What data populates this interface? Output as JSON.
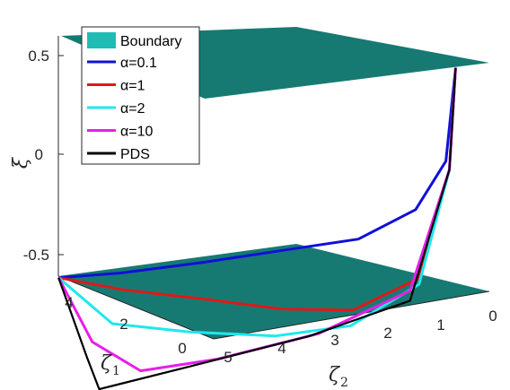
{
  "chart_data": {
    "type": "line",
    "title": "",
    "axes": {
      "x": {
        "label": "ζ",
        "subscript": "2",
        "ticks": [
          "5",
          "4",
          "3",
          "2",
          "1",
          "0"
        ]
      },
      "y": {
        "label": "ζ",
        "subscript": "1",
        "ticks": [
          "0",
          "2",
          "4"
        ]
      },
      "z": {
        "label": "ξ",
        "ticks": [
          "0.5",
          "0",
          "-0.5"
        ],
        "zlim": [
          -0.6,
          0.6
        ]
      }
    },
    "surfaces": [
      {
        "name": "Boundary",
        "z": 0.6,
        "color": "#177a72"
      },
      {
        "name": "Boundary",
        "z": -0.6,
        "color": "#177a72"
      }
    ],
    "series": [
      {
        "name": "α=0.1",
        "color": "#1010d8",
        "points_zeta2_zeta1_xi": [
          [
            5.0,
            4.5,
            0.02
          ],
          [
            4.2,
            4.0,
            -0.03
          ],
          [
            3.2,
            3.2,
            -0.08
          ],
          [
            2.2,
            2.2,
            -0.13
          ],
          [
            1.5,
            1.4,
            -0.17
          ],
          [
            0.9,
            0.7,
            -0.1
          ],
          [
            0.6,
            0.3,
            0.1
          ],
          [
            0.55,
            0.1,
            0.55
          ]
        ]
      },
      {
        "name": "α=1",
        "color": "#e01818",
        "points_zeta2_zeta1_xi": [
          [
            5.0,
            4.5,
            0.02
          ],
          [
            4.2,
            3.9,
            -0.12
          ],
          [
            3.2,
            3.0,
            -0.28
          ],
          [
            2.4,
            2.2,
            -0.42
          ],
          [
            1.6,
            1.4,
            -0.52
          ],
          [
            0.9,
            0.6,
            -0.45
          ],
          [
            0.6,
            0.2,
            0.05
          ],
          [
            0.55,
            0.1,
            0.55
          ]
        ]
      },
      {
        "name": "α=2",
        "color": "#1ee8ee",
        "points_zeta2_zeta1_xi": [
          [
            5.0,
            4.5,
            0.02
          ],
          [
            4.4,
            3.9,
            -0.28
          ],
          [
            3.5,
            3.1,
            -0.42
          ],
          [
            2.5,
            2.2,
            -0.55
          ],
          [
            1.7,
            1.3,
            -0.6
          ],
          [
            0.9,
            0.6,
            -0.48
          ],
          [
            0.6,
            0.2,
            0.05
          ],
          [
            0.55,
            0.1,
            0.55
          ]
        ]
      },
      {
        "name": "α=10",
        "color": "#e81ee8",
        "points_zeta2_zeta1_xi": [
          [
            5.0,
            4.5,
            0.02
          ],
          [
            4.7,
            4.0,
            -0.35
          ],
          [
            4.2,
            3.4,
            -0.56
          ],
          [
            3.3,
            2.6,
            -0.6
          ],
          [
            2.1,
            1.6,
            -0.6
          ],
          [
            1.0,
            0.7,
            -0.5
          ],
          [
            0.6,
            0.2,
            0.05
          ],
          [
            0.55,
            0.1,
            0.55
          ]
        ]
      },
      {
        "name": "PDS",
        "color": "#000000",
        "points_zeta2_zeta1_xi": [
          [
            5.0,
            4.5,
            0.02
          ],
          [
            4.8,
            4.0,
            -0.42
          ],
          [
            4.7,
            3.8,
            -0.6
          ],
          [
            3.6,
            2.9,
            -0.6
          ],
          [
            2.2,
            1.7,
            -0.6
          ],
          [
            1.0,
            0.7,
            -0.55
          ],
          [
            0.6,
            0.2,
            0.05
          ],
          [
            0.55,
            0.1,
            0.55
          ]
        ]
      }
    ],
    "legend": {
      "placement": "top-left"
    }
  }
}
